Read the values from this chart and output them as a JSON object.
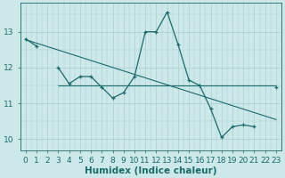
{
  "x_data": [
    0,
    1,
    2,
    3,
    4,
    5,
    6,
    7,
    8,
    9,
    10,
    11,
    12,
    13,
    14,
    15,
    16,
    17,
    18,
    19,
    20,
    21,
    22,
    23
  ],
  "y_data": [
    12.8,
    12.6,
    null,
    12.0,
    11.55,
    11.75,
    11.75,
    11.45,
    11.15,
    11.3,
    11.75,
    13.0,
    13.0,
    13.55,
    12.65,
    11.65,
    11.5,
    10.85,
    10.05,
    10.35,
    10.4,
    10.35,
    null,
    11.45
  ],
  "trend_x": [
    0,
    23
  ],
  "trend_y": [
    12.78,
    10.55
  ],
  "hline_y": 11.5,
  "hline_x_start": 3,
  "hline_x_end": 23,
  "xlabel": "Humidex (Indice chaleur)",
  "ylim": [
    9.7,
    13.8
  ],
  "xlim": [
    -0.5,
    23.5
  ],
  "yticks": [
    10,
    11,
    12,
    13
  ],
  "xticks": [
    0,
    1,
    2,
    3,
    4,
    5,
    6,
    7,
    8,
    9,
    10,
    11,
    12,
    13,
    14,
    15,
    16,
    17,
    18,
    19,
    20,
    21,
    22,
    23
  ],
  "line_color": "#1a6b6b",
  "bg_color": "#cce8e8",
  "grid_color": "#aacece",
  "tick_fontsize": 6.5,
  "label_fontsize": 7.5
}
